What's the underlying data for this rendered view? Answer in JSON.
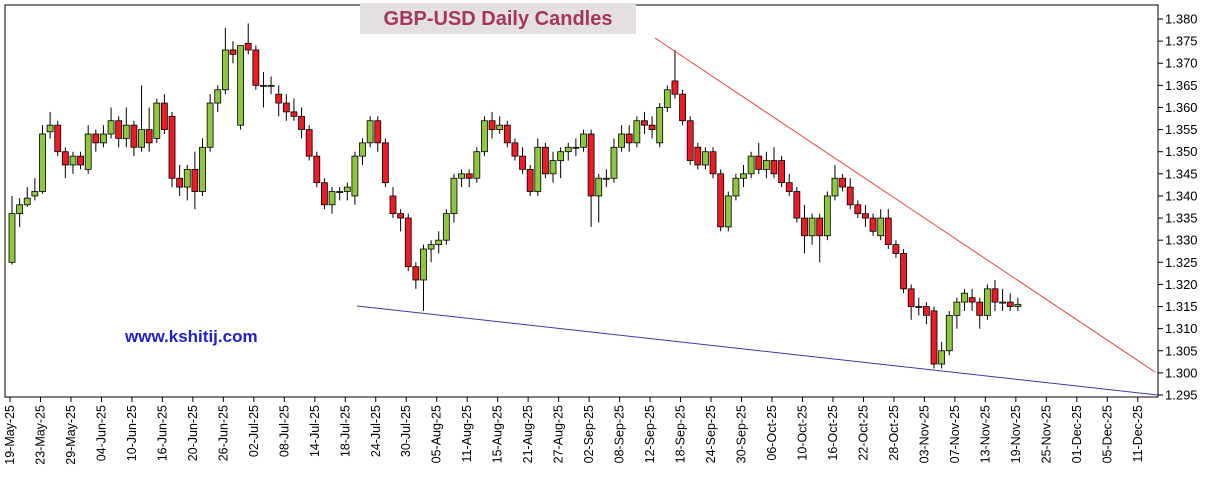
{
  "chart_data": {
    "type": "candlestick",
    "title": "GBP-USD Daily Candles",
    "watermark": "www.kshitij.com",
    "up_color": "#8dc63f",
    "down_color": "#ed1c24",
    "categories": [
      "19-May-25",
      null,
      null,
      null,
      "23-May-25",
      null,
      null,
      null,
      "29-May-25",
      null,
      null,
      null,
      "04-Jun-25",
      null,
      null,
      null,
      "10-Jun-25",
      null,
      null,
      null,
      "16-Jun-25",
      null,
      null,
      null,
      "20-Jun-25",
      null,
      null,
      null,
      "26-Jun-25",
      null,
      null,
      null,
      "02-Jul-25",
      null,
      null,
      null,
      "08-Jul-25",
      null,
      null,
      null,
      "14-Jul-25",
      null,
      null,
      null,
      "18-Jul-25",
      null,
      null,
      null,
      "24-Jul-25",
      null,
      null,
      null,
      "30-Jul-25",
      null,
      null,
      null,
      "05-Aug-25",
      null,
      null,
      null,
      "11-Aug-25",
      null,
      null,
      null,
      "15-Aug-25",
      null,
      null,
      null,
      "21-Aug-25",
      null,
      null,
      null,
      "27-Aug-25",
      null,
      null,
      null,
      "02-Sep-25",
      null,
      null,
      null,
      "08-Sep-25",
      null,
      null,
      null,
      "12-Sep-25",
      null,
      null,
      null,
      "18-Sep-25",
      null,
      null,
      null,
      "24-Sep-25",
      null,
      null,
      null,
      "30-Sep-25",
      null,
      null,
      null,
      "06-Oct-25",
      null,
      null,
      null,
      "10-Oct-25",
      null,
      null,
      null,
      "16-Oct-25",
      null,
      null,
      null,
      "22-Oct-25",
      null,
      null,
      null,
      "28-Oct-25",
      null,
      null,
      null,
      "03-Nov-25",
      null,
      null,
      null,
      "07-Nov-25",
      null,
      null,
      null,
      "13-Nov-25",
      null,
      null,
      null,
      "19-Nov-25",
      null,
      null,
      null,
      "25-Nov-25",
      null,
      null,
      null,
      "01-Dec-25",
      null,
      null,
      null,
      "05-Dec-25",
      null,
      null,
      null,
      "11-Dec-25",
      null,
      null
    ],
    "open": [
      1.325,
      1.336,
      1.338,
      1.34,
      1.341,
      1.3545,
      1.356,
      1.35,
      1.347,
      1.349,
      1.346,
      1.354,
      1.352,
      1.354,
      1.357,
      1.353,
      1.356,
      1.351,
      1.355,
      1.353,
      1.361,
      1.358,
      1.344,
      1.342,
      1.346,
      1.341,
      1.351,
      1.361,
      1.364,
      1.373,
      1.356,
      1.3745,
      1.373,
      1.365,
      1.365,
      1.363,
      1.361,
      1.359,
      1.358,
      1.355,
      1.349,
      1.343,
      1.338,
      1.341,
      1.341,
      1.34,
      1.349,
      1.352,
      1.357,
      1.352,
      1.34,
      1.336,
      1.335,
      1.324,
      1.321,
      1.328,
      1.329,
      1.33,
      1.336,
      1.344,
      1.345,
      1.344,
      1.35,
      1.357,
      1.355,
      1.356,
      1.352,
      1.349,
      1.346,
      1.341,
      1.351,
      1.345,
      1.348,
      1.35,
      1.351,
      1.351,
      1.354,
      1.34,
      1.344,
      1.344,
      1.351,
      1.354,
      1.352,
      1.357,
      1.356,
      1.352,
      1.36,
      1.366,
      1.363,
      1.357,
      1.351,
      1.347,
      1.35,
      1.345,
      1.333,
      1.34,
      1.344,
      1.345,
      1.349,
      1.346,
      1.348,
      1.348,
      1.343,
      1.341,
      1.335,
      1.331,
      1.335,
      1.331,
      1.34,
      1.344,
      1.342,
      1.338,
      1.336,
      1.335,
      1.331,
      1.335,
      1.329,
      1.327,
      1.319,
      1.315,
      1.315,
      1.314,
      1.302,
      1.305,
      1.313,
      1.316,
      1.317,
      1.316,
      1.313,
      1.319,
      1.316,
      1.316,
      1.315,
      null,
      null,
      null,
      null,
      null,
      null,
      null,
      null,
      null,
      null,
      null,
      null,
      null,
      null,
      null,
      null,
      null,
      null
    ],
    "high": [
      1.34,
      1.3395,
      1.342,
      1.344,
      1.356,
      1.359,
      1.357,
      1.351,
      1.35,
      1.35,
      1.356,
      1.355,
      1.356,
      1.36,
      1.358,
      1.36,
      1.357,
      1.365,
      1.36,
      1.362,
      1.363,
      1.359,
      1.347,
      1.347,
      1.35,
      1.353,
      1.363,
      1.365,
      1.378,
      1.375,
      1.374,
      1.379,
      1.374,
      1.368,
      1.367,
      1.365,
      1.363,
      1.362,
      1.36,
      1.356,
      1.35,
      1.344,
      1.342,
      1.342,
      1.343,
      1.35,
      1.353,
      1.358,
      1.358,
      1.353,
      1.342,
      1.337,
      1.336,
      1.325,
      1.329,
      1.33,
      1.332,
      1.337,
      1.345,
      1.346,
      1.346,
      1.351,
      1.358,
      1.359,
      1.358,
      1.357,
      1.353,
      1.351,
      1.347,
      1.353,
      1.352,
      1.35,
      1.351,
      1.352,
      1.353,
      1.355,
      1.355,
      1.345,
      1.346,
      1.353,
      1.356,
      1.356,
      1.358,
      1.359,
      1.358,
      1.361,
      1.365,
      1.373,
      1.364,
      1.358,
      1.352,
      1.351,
      1.351,
      1.346,
      1.341,
      1.345,
      1.347,
      1.35,
      1.352,
      1.35,
      1.351,
      1.349,
      1.345,
      1.342,
      1.338,
      1.336,
      1.336,
      1.341,
      1.347,
      1.345,
      1.344,
      1.339,
      1.338,
      1.336,
      1.337,
      1.337,
      1.33,
      1.328,
      1.32,
      1.317,
      1.316,
      1.315,
      1.307,
      1.314,
      1.317,
      1.319,
      1.319,
      1.317,
      1.32,
      1.321,
      1.319,
      1.318,
      1.317,
      null,
      null,
      null,
      null,
      null,
      null,
      null,
      null,
      null,
      null,
      null,
      null,
      null,
      null,
      null,
      null,
      null,
      null
    ],
    "low": [
      1.3245,
      1.333,
      1.3375,
      1.339,
      1.3405,
      1.353,
      1.349,
      1.344,
      1.345,
      1.346,
      1.345,
      1.35,
      1.351,
      1.353,
      1.351,
      1.351,
      1.349,
      1.35,
      1.35,
      1.352,
      1.354,
      1.342,
      1.34,
      1.339,
      1.337,
      1.34,
      1.35,
      1.359,
      1.363,
      1.37,
      1.355,
      1.372,
      1.364,
      1.36,
      1.363,
      1.358,
      1.357,
      1.357,
      1.353,
      1.348,
      1.342,
      1.337,
      1.336,
      1.339,
      1.339,
      1.338,
      1.347,
      1.351,
      1.35,
      1.342,
      1.335,
      1.332,
      1.323,
      1.319,
      1.314,
      1.325,
      1.327,
      1.329,
      1.334,
      1.342,
      1.342,
      1.343,
      1.349,
      1.353,
      1.354,
      1.351,
      1.348,
      1.345,
      1.34,
      1.34,
      1.344,
      1.343,
      1.344,
      1.348,
      1.349,
      1.35,
      1.333,
      1.334,
      1.342,
      1.343,
      1.35,
      1.35,
      1.351,
      1.354,
      1.353,
      1.351,
      1.359,
      1.362,
      1.356,
      1.347,
      1.346,
      1.346,
      1.344,
      1.332,
      1.332,
      1.339,
      1.342,
      1.344,
      1.345,
      1.344,
      1.344,
      1.342,
      1.34,
      1.334,
      1.327,
      1.329,
      1.325,
      1.33,
      1.339,
      1.341,
      1.337,
      1.335,
      1.333,
      1.331,
      1.33,
      1.328,
      1.326,
      1.318,
      1.312,
      1.313,
      1.311,
      1.301,
      1.301,
      1.304,
      1.31,
      1.314,
      1.314,
      1.31,
      1.312,
      1.314,
      1.314,
      1.314,
      1.314,
      null,
      null,
      null,
      null,
      null,
      null,
      null,
      null,
      null,
      null,
      null,
      null,
      null,
      null,
      null,
      null,
      null,
      null
    ],
    "close": [
      1.336,
      1.338,
      1.3395,
      1.341,
      1.354,
      1.356,
      1.35,
      1.347,
      1.349,
      1.347,
      1.354,
      1.352,
      1.354,
      1.357,
      1.353,
      1.356,
      1.351,
      1.355,
      1.352,
      1.361,
      1.355,
      1.344,
      1.342,
      1.346,
      1.341,
      1.351,
      1.361,
      1.364,
      1.373,
      1.372,
      1.374,
      1.373,
      1.365,
      1.365,
      1.365,
      1.361,
      1.359,
      1.358,
      1.355,
      1.349,
      1.343,
      1.338,
      1.341,
      1.341,
      1.342,
      1.349,
      1.352,
      1.357,
      1.352,
      1.343,
      1.336,
      1.335,
      1.324,
      1.321,
      1.328,
      1.329,
      1.33,
      1.336,
      1.344,
      1.345,
      1.344,
      1.35,
      1.357,
      1.355,
      1.356,
      1.352,
      1.349,
      1.346,
      1.341,
      1.351,
      1.345,
      1.348,
      1.35,
      1.351,
      1.351,
      1.354,
      1.34,
      1.344,
      1.344,
      1.351,
      1.354,
      1.352,
      1.357,
      1.356,
      1.355,
      1.36,
      1.364,
      1.363,
      1.357,
      1.348,
      1.347,
      1.35,
      1.345,
      1.333,
      1.34,
      1.344,
      1.345,
      1.349,
      1.346,
      1.348,
      1.345,
      1.343,
      1.341,
      1.335,
      1.331,
      1.335,
      1.331,
      1.34,
      1.344,
      1.342,
      1.338,
      1.336,
      1.335,
      1.332,
      1.335,
      1.329,
      1.327,
      1.319,
      1.315,
      1.315,
      1.313,
      1.302,
      1.305,
      1.313,
      1.316,
      1.318,
      1.316,
      1.313,
      1.319,
      1.316,
      1.316,
      1.315,
      1.3155,
      null,
      null,
      null,
      null,
      null,
      null,
      null,
      null,
      null,
      null,
      null,
      null,
      null,
      null,
      null,
      null,
      null,
      null
    ],
    "ylim": [
      1.295,
      1.38
    ],
    "yticks": [
      1.295,
      {
        "value": 1.3,
        "label": "1.300"
      },
      1.305,
      {
        "value": 1.31,
        "label": "1.310"
      },
      1.315,
      {
        "value": 1.32,
        "label": "1.320"
      },
      1.325,
      {
        "value": 1.33,
        "label": "1.330"
      },
      1.335,
      {
        "value": 1.34,
        "label": "1.340"
      },
      1.345,
      {
        "value": 1.35,
        "label": "1.350"
      },
      1.355,
      {
        "value": 1.36,
        "label": "1.360"
      },
      1.365,
      {
        "value": 1.37,
        "label": "1.370"
      },
      1.375,
      {
        "value": 1.38,
        "label": "1.380"
      }
    ],
    "grid": false
  }
}
